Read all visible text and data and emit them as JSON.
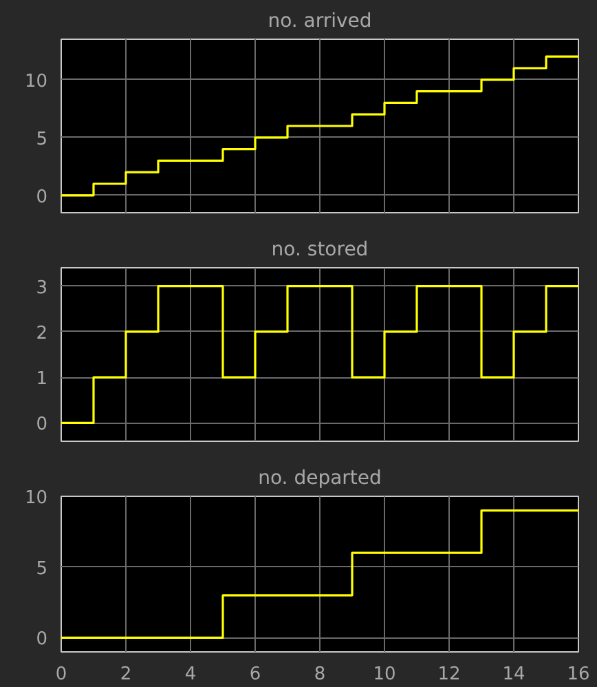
{
  "chart_data": [
    {
      "type": "step",
      "title": "no. arrived",
      "x": [
        0,
        1,
        2,
        3,
        4,
        5,
        6,
        7,
        8,
        9,
        10,
        11,
        12,
        13,
        14,
        15,
        16
      ],
      "series": [
        {
          "color": "#ffff00",
          "values": [
            0,
            1,
            2,
            3,
            3,
            4,
            5,
            6,
            6,
            7,
            8,
            9,
            9,
            10,
            11,
            12,
            12
          ]
        }
      ],
      "xlim": [
        0,
        16
      ],
      "xticks": [
        0,
        2,
        4,
        6,
        8,
        10,
        12,
        14,
        16
      ],
      "ylim": [
        -1.5,
        13.5
      ],
      "yticks": [
        0,
        5,
        10
      ],
      "grid": true,
      "tick_labels": "y"
    },
    {
      "type": "step",
      "title": "no. stored",
      "x": [
        0,
        1,
        2,
        3,
        4,
        5,
        6,
        7,
        8,
        9,
        10,
        11,
        12,
        13,
        14,
        15,
        16
      ],
      "series": [
        {
          "color": "#ffff00",
          "values": [
            0,
            1,
            2,
            3,
            3,
            1,
            2,
            3,
            3,
            1,
            2,
            3,
            3,
            1,
            2,
            3,
            3
          ]
        }
      ],
      "xlim": [
        0,
        16
      ],
      "xticks": [
        0,
        2,
        4,
        6,
        8,
        10,
        12,
        14,
        16
      ],
      "ylim": [
        -0.4,
        3.4
      ],
      "yticks": [
        0,
        1,
        2,
        3
      ],
      "grid": true,
      "tick_labels": "y"
    },
    {
      "type": "step",
      "title": "no. departed",
      "x": [
        0,
        1,
        2,
        3,
        4,
        5,
        6,
        7,
        8,
        9,
        10,
        11,
        12,
        13,
        14,
        15,
        16
      ],
      "series": [
        {
          "color": "#ffff00",
          "values": [
            0,
            0,
            0,
            0,
            0,
            3,
            3,
            3,
            3,
            6,
            6,
            6,
            6,
            9,
            9,
            9,
            9
          ]
        }
      ],
      "xlim": [
        0,
        16
      ],
      "xticks": [
        0,
        2,
        4,
        6,
        8,
        10,
        12,
        14,
        16
      ],
      "ylim": [
        -1,
        10
      ],
      "yticks": [
        0,
        5,
        10
      ],
      "grid": true
    }
  ]
}
